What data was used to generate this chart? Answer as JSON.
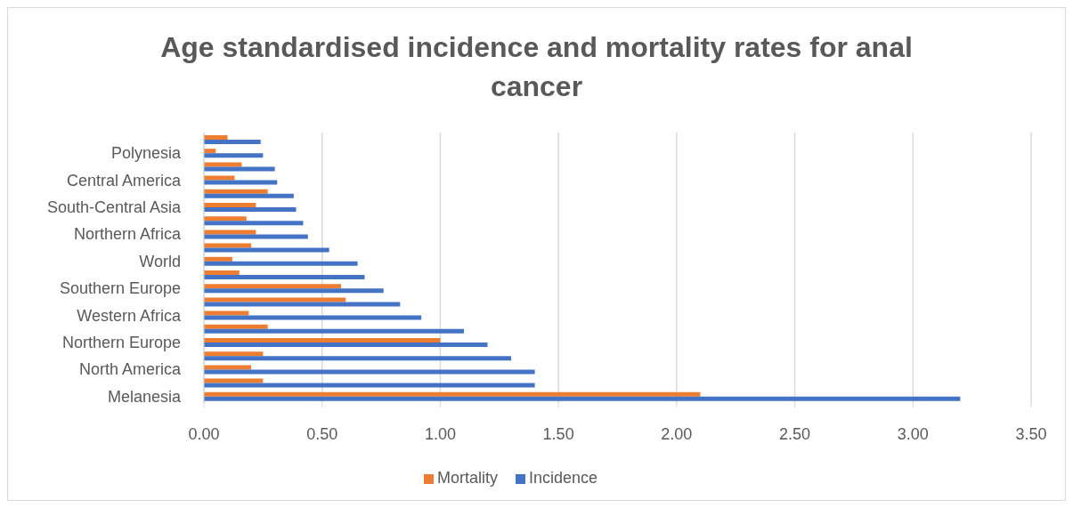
{
  "chart_data": {
    "type": "bar",
    "orientation": "horizontal",
    "title": "Age standardised incidence and mortality rates for anal cancer",
    "categories": [
      null,
      "Polynesia",
      null,
      "Central America",
      null,
      "South-Central Asia",
      null,
      "Northern Africa",
      null,
      "World",
      null,
      "Southern Europe",
      null,
      "Western Africa",
      null,
      "Northern Europe",
      null,
      "North America",
      null,
      "Melanesia"
    ],
    "series": [
      {
        "name": "Mortality",
        "color": "#ed7d31",
        "values": [
          0.1,
          0.05,
          0.16,
          0.13,
          0.27,
          0.22,
          0.18,
          0.22,
          0.2,
          0.12,
          0.15,
          0.58,
          0.6,
          0.19,
          0.27,
          1.0,
          0.25,
          0.2,
          0.25,
          2.1
        ]
      },
      {
        "name": "Incidence",
        "color": "#4472c4",
        "values": [
          0.24,
          0.25,
          0.3,
          0.31,
          0.38,
          0.39,
          0.42,
          0.44,
          0.53,
          0.65,
          0.68,
          0.76,
          0.83,
          0.92,
          1.1,
          1.2,
          1.3,
          1.4,
          1.4,
          3.2
        ]
      }
    ],
    "xlim": [
      0,
      3.5
    ],
    "xticks": [
      {
        "value": 0,
        "label": "0.00"
      },
      {
        "value": 0.5,
        "label": "0.50"
      },
      {
        "value": 1,
        "label": "1.00"
      },
      {
        "value": 1.5,
        "label": "1.50"
      },
      {
        "value": 2,
        "label": "2.00"
      },
      {
        "value": 2.5,
        "label": "2.50"
      },
      {
        "value": 3,
        "label": "3.00"
      },
      {
        "value": 3.5,
        "label": "3.50"
      }
    ],
    "grid": "x",
    "legend": "bottom"
  }
}
